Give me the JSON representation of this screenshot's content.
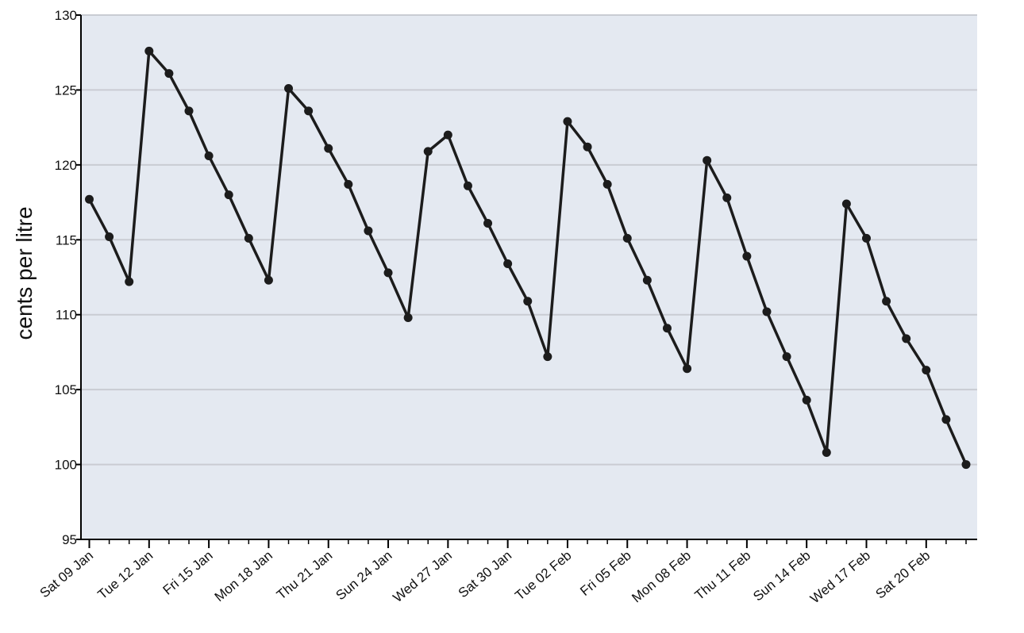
{
  "chart_data": {
    "type": "line",
    "title": "",
    "xlabel": "",
    "ylabel": "cents per litre",
    "ylim": [
      95,
      130
    ],
    "yticks": [
      95,
      100,
      105,
      110,
      115,
      120,
      125,
      130
    ],
    "x": [
      "2010-01-09",
      "2010-01-10",
      "2010-01-11",
      "2010-01-12",
      "2010-01-13",
      "2010-01-14",
      "2010-01-15",
      "2010-01-16",
      "2010-01-17",
      "2010-01-18",
      "2010-01-19",
      "2010-01-20",
      "2010-01-21",
      "2010-01-22",
      "2010-01-23",
      "2010-01-24",
      "2010-01-25",
      "2010-01-26",
      "2010-01-27",
      "2010-01-28",
      "2010-01-29",
      "2010-01-30",
      "2010-01-31",
      "2010-02-01",
      "2010-02-02",
      "2010-02-03",
      "2010-02-04",
      "2010-02-05",
      "2010-02-06",
      "2010-02-07",
      "2010-02-08",
      "2010-02-09",
      "2010-02-10",
      "2010-02-11",
      "2010-02-12",
      "2010-02-13",
      "2010-02-14",
      "2010-02-15",
      "2010-02-16",
      "2010-02-17",
      "2010-02-18",
      "2010-02-19",
      "2010-02-20",
      "2010-02-21",
      "2010-02-22"
    ],
    "series": [
      {
        "values": [
          117.7,
          115.2,
          112.2,
          127.6,
          126.1,
          123.6,
          120.6,
          118.0,
          115.1,
          112.3,
          125.1,
          123.6,
          121.1,
          118.7,
          115.6,
          112.8,
          109.8,
          120.9,
          122.0,
          118.6,
          116.1,
          113.4,
          110.9,
          107.2,
          122.9,
          121.2,
          118.7,
          115.1,
          112.3,
          109.1,
          106.4,
          120.3,
          117.8,
          113.9,
          110.2,
          107.2,
          104.3,
          100.8,
          117.4,
          115.1,
          110.9,
          108.4,
          106.3,
          103.0,
          100.0
        ]
      }
    ],
    "tick_dates": [
      "2010-01-09",
      "2010-01-12",
      "2010-01-15",
      "2010-01-18",
      "2010-01-21",
      "2010-01-24",
      "2010-01-27",
      "2010-01-30",
      "2010-02-02",
      "2010-02-05",
      "2010-02-08",
      "2010-02-11",
      "2010-02-14",
      "2010-02-17",
      "2010-02-20"
    ],
    "x_tick_labels": [
      "Sat 09 Jan",
      "Tue 12 Jan",
      "Fri 15 Jan",
      "Mon 18 Jan",
      "Thu 21 Jan",
      "Sun 24 Jan",
      "Wed 27 Jan",
      "Sat 30 Jan",
      "Tue 02 Feb",
      "Fri 05 Feb",
      "Mon 08 Feb",
      "Thu 11 Feb",
      "Sun 14 Feb",
      "Wed 17 Feb",
      "Sat 20 Feb"
    ],
    "grid": true,
    "colors": {
      "plot_background": "#e4e9f1",
      "gridline": "#c9ccd3",
      "line": "#1c1c1c",
      "axis": "#000000"
    }
  }
}
